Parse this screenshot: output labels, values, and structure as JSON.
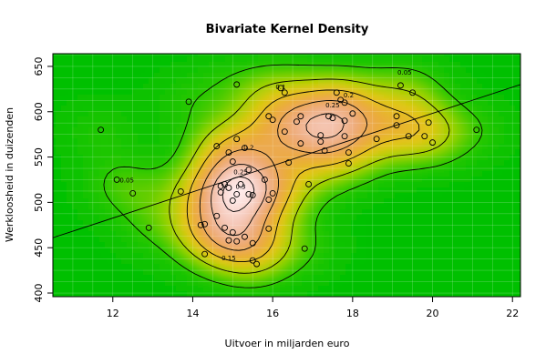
{
  "chart_data": {
    "type": "scatter",
    "title": "Bivariate Kernel Density",
    "xlabel": "Uitvoer in miljarden euro",
    "ylabel": "Werkloosheid in duizenden",
    "xlim": [
      10.5,
      22.2
    ],
    "ylim": [
      396,
      664
    ],
    "xticks": [
      12,
      14,
      16,
      18,
      20,
      22
    ],
    "yticks": [
      400,
      450,
      500,
      550,
      600,
      650
    ],
    "grid": true,
    "background": "density-heatmap",
    "colors": {
      "low": "#00c000",
      "mid": "#e8c020",
      "high": "#ffe8e8",
      "points": "#000000"
    },
    "points": [
      {
        "x": 11.7,
        "y": 580
      },
      {
        "x": 12.1,
        "y": 525
      },
      {
        "x": 12.5,
        "y": 510
      },
      {
        "x": 12.9,
        "y": 472
      },
      {
        "x": 13.7,
        "y": 512
      },
      {
        "x": 13.9,
        "y": 611
      },
      {
        "x": 14.2,
        "y": 475
      },
      {
        "x": 14.3,
        "y": 476
      },
      {
        "x": 14.3,
        "y": 443
      },
      {
        "x": 14.6,
        "y": 562
      },
      {
        "x": 14.6,
        "y": 485
      },
      {
        "x": 14.7,
        "y": 518
      },
      {
        "x": 14.7,
        "y": 511
      },
      {
        "x": 14.8,
        "y": 520
      },
      {
        "x": 14.8,
        "y": 472
      },
      {
        "x": 14.9,
        "y": 516
      },
      {
        "x": 14.9,
        "y": 555
      },
      {
        "x": 14.9,
        "y": 458
      },
      {
        "x": 15.0,
        "y": 545
      },
      {
        "x": 15.0,
        "y": 502
      },
      {
        "x": 15.0,
        "y": 467
      },
      {
        "x": 15.1,
        "y": 630
      },
      {
        "x": 15.1,
        "y": 570
      },
      {
        "x": 15.1,
        "y": 509
      },
      {
        "x": 15.1,
        "y": 457
      },
      {
        "x": 15.2,
        "y": 520
      },
      {
        "x": 15.3,
        "y": 560
      },
      {
        "x": 15.3,
        "y": 462
      },
      {
        "x": 15.4,
        "y": 536
      },
      {
        "x": 15.4,
        "y": 509
      },
      {
        "x": 15.5,
        "y": 508
      },
      {
        "x": 15.5,
        "y": 455
      },
      {
        "x": 15.5,
        "y": 436
      },
      {
        "x": 15.6,
        "y": 432
      },
      {
        "x": 15.8,
        "y": 525
      },
      {
        "x": 15.9,
        "y": 595
      },
      {
        "x": 15.9,
        "y": 503
      },
      {
        "x": 15.9,
        "y": 471
      },
      {
        "x": 16.0,
        "y": 591
      },
      {
        "x": 16.0,
        "y": 510
      },
      {
        "x": 16.2,
        "y": 626
      },
      {
        "x": 16.3,
        "y": 621
      },
      {
        "x": 16.3,
        "y": 578
      },
      {
        "x": 16.4,
        "y": 544
      },
      {
        "x": 16.6,
        "y": 589
      },
      {
        "x": 16.7,
        "y": 595
      },
      {
        "x": 16.7,
        "y": 565
      },
      {
        "x": 16.8,
        "y": 449
      },
      {
        "x": 16.9,
        "y": 520
      },
      {
        "x": 17.2,
        "y": 574
      },
      {
        "x": 17.2,
        "y": 567
      },
      {
        "x": 17.3,
        "y": 557
      },
      {
        "x": 17.4,
        "y": 595
      },
      {
        "x": 17.5,
        "y": 593
      },
      {
        "x": 17.6,
        "y": 621
      },
      {
        "x": 17.7,
        "y": 613
      },
      {
        "x": 17.8,
        "y": 610
      },
      {
        "x": 17.8,
        "y": 590
      },
      {
        "x": 17.8,
        "y": 573
      },
      {
        "x": 17.9,
        "y": 555
      },
      {
        "x": 17.9,
        "y": 543
      },
      {
        "x": 18.0,
        "y": 598
      },
      {
        "x": 18.6,
        "y": 570
      },
      {
        "x": 19.1,
        "y": 595
      },
      {
        "x": 19.1,
        "y": 585
      },
      {
        "x": 19.2,
        "y": 629
      },
      {
        "x": 19.4,
        "y": 573
      },
      {
        "x": 19.5,
        "y": 621
      },
      {
        "x": 19.8,
        "y": 573
      },
      {
        "x": 19.9,
        "y": 588
      },
      {
        "x": 20.0,
        "y": 566
      },
      {
        "x": 21.1,
        "y": 580
      }
    ],
    "regression_line": {
      "x": [
        10.5,
        22.2
      ],
      "y": [
        461,
        630
      ]
    },
    "contour_labels": [
      {
        "text": "0.05",
        "x": 12.35,
        "y": 524
      },
      {
        "text": "0.05",
        "x": 19.3,
        "y": 643
      },
      {
        "text": "0.1",
        "x": 16.2,
        "y": 627
      },
      {
        "text": "0.15",
        "x": 14.9,
        "y": 438
      },
      {
        "text": "0.2",
        "x": 15.4,
        "y": 560
      },
      {
        "text": "0.2",
        "x": 17.9,
        "y": 618
      },
      {
        "text": "0.25",
        "x": 15.2,
        "y": 533
      },
      {
        "text": "0.25",
        "x": 17.5,
        "y": 607
      },
      {
        "text": "0.3",
        "x": 15.2,
        "y": 517
      }
    ]
  }
}
